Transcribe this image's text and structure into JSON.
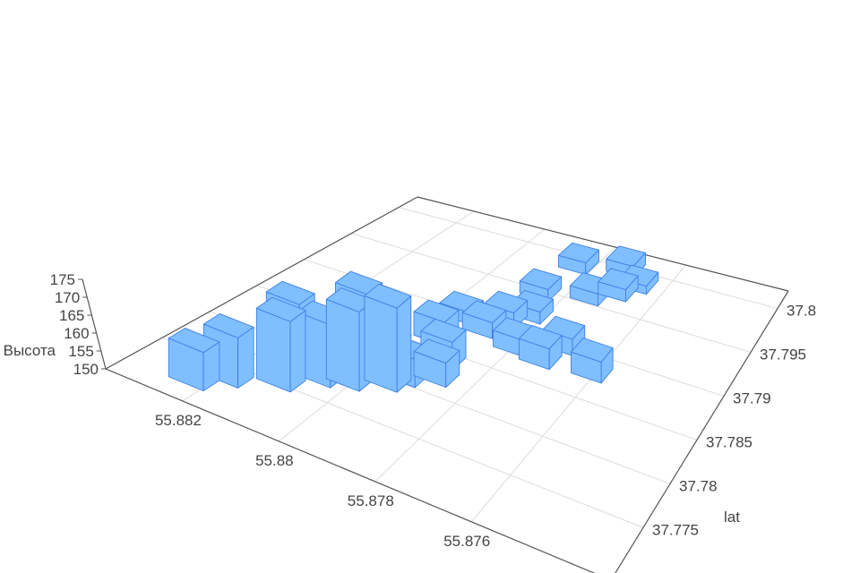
{
  "chart_data": {
    "type": "bar3d",
    "title": "",
    "xlabel": "",
    "ylabel": "lat",
    "zlabel": "Высота",
    "xlim": [
      55.8731,
      55.8836
    ],
    "ylim": [
      37.769,
      37.802
    ],
    "zlim": [
      150,
      175
    ],
    "grid": true,
    "x_ticks": [
      "55.882",
      "55.88",
      "55.878",
      "55.876"
    ],
    "x_tick_values": [
      55.882,
      55.88,
      55.878,
      55.876
    ],
    "y_ticks": [
      "37.775",
      "37.78",
      "37.785",
      "37.79",
      "37.795",
      "37.8"
    ],
    "y_tick_values": [
      37.775,
      37.78,
      37.785,
      37.79,
      37.795,
      37.8
    ],
    "z_ticks": [
      "150",
      "155",
      "160",
      "165",
      "170",
      "175"
    ],
    "z_tick_values": [
      150,
      155,
      160,
      165,
      170,
      175
    ],
    "bar_color": "#80bfff",
    "edge_color": "#3d7fe6",
    "bars": [
      {
        "lon": 55.8823,
        "lat": 37.7719,
        "z": 160
      },
      {
        "lon": 55.8819,
        "lat": 37.7737,
        "z": 163
      },
      {
        "lon": 55.8811,
        "lat": 37.7755,
        "z": 168
      },
      {
        "lon": 55.8814,
        "lat": 37.7782,
        "z": 167
      },
      {
        "lon": 55.8806,
        "lat": 37.7776,
        "z": 166
      },
      {
        "lon": 55.8801,
        "lat": 37.7784,
        "z": 170
      },
      {
        "lon": 55.8804,
        "lat": 37.7811,
        "z": 169
      },
      {
        "lon": 55.8795,
        "lat": 37.7798,
        "z": 171
      },
      {
        "lon": 55.8793,
        "lat": 37.781,
        "z": 157
      },
      {
        "lon": 55.8788,
        "lat": 37.7822,
        "z": 156
      },
      {
        "lon": 55.879,
        "lat": 37.7842,
        "z": 157
      },
      {
        "lon": 55.8796,
        "lat": 37.7865,
        "z": 156
      },
      {
        "lon": 55.8796,
        "lat": 37.7897,
        "z": 153
      },
      {
        "lon": 55.8789,
        "lat": 37.789,
        "z": 154
      },
      {
        "lon": 55.8787,
        "lat": 37.7908,
        "z": 154
      },
      {
        "lon": 55.878,
        "lat": 37.7882,
        "z": 154
      },
      {
        "lon": 55.8773,
        "lat": 37.7878,
        "z": 155
      },
      {
        "lon": 55.8771,
        "lat": 37.79,
        "z": 154
      },
      {
        "lon": 55.8761,
        "lat": 37.7882,
        "z": 155
      },
      {
        "lon": 55.8786,
        "lat": 37.7949,
        "z": 153
      },
      {
        "lon": 55.8775,
        "lat": 37.796,
        "z": 153
      },
      {
        "lon": 55.877,
        "lat": 37.7973,
        "z": 153
      },
      {
        "lon": 55.8784,
        "lat": 37.799,
        "z": 153
      },
      {
        "lon": 55.8773,
        "lat": 37.8,
        "z": 153
      },
      {
        "lon": 55.8767,
        "lat": 37.7987,
        "z": 152
      },
      {
        "lon": 55.8783,
        "lat": 37.7922,
        "z": 153
      }
    ]
  }
}
